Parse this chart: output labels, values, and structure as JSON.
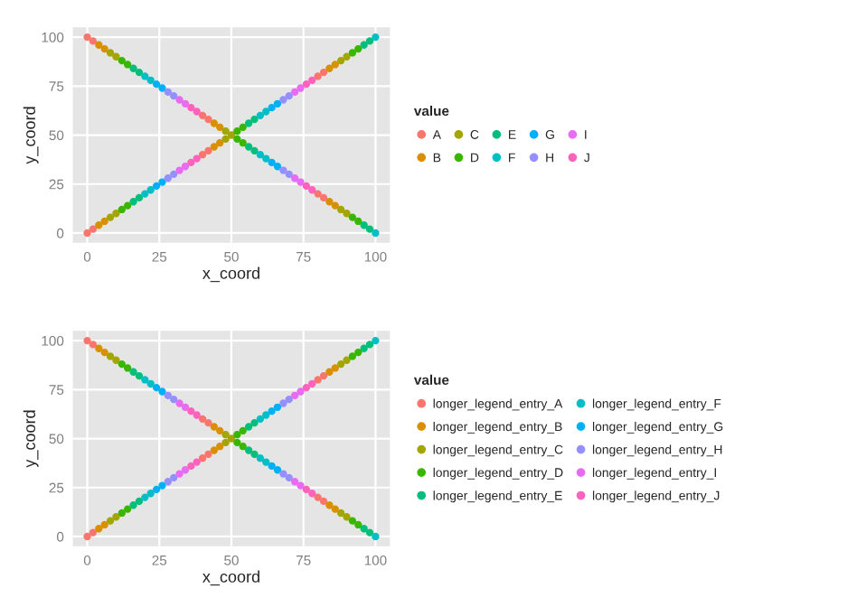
{
  "chart_data": [
    {
      "type": "scatter",
      "xlabel": "x_coord",
      "ylabel": "y_coord",
      "legend_title": "value",
      "legend": "right",
      "grid": true,
      "marker": "circle",
      "xlim": [
        -5,
        105
      ],
      "ylim": [
        -5,
        105
      ],
      "xticks": [
        0,
        25,
        50,
        75,
        100
      ],
      "yticks": [
        0,
        25,
        50,
        75,
        100
      ],
      "series": [
        {
          "name": "A",
          "color": "#f8766d",
          "x": [
            0,
            2,
            40,
            42,
            80,
            82,
            0,
            2,
            40,
            42,
            80,
            82
          ],
          "values": [
            0,
            2,
            40,
            42,
            80,
            82,
            100,
            98,
            60,
            58,
            20,
            18
          ]
        },
        {
          "name": "B",
          "color": "#d89000",
          "x": [
            4,
            6,
            44,
            46,
            84,
            86,
            4,
            6,
            44,
            46,
            84,
            86
          ],
          "values": [
            4,
            6,
            44,
            46,
            84,
            86,
            96,
            94,
            56,
            54,
            16,
            14
          ]
        },
        {
          "name": "C",
          "color": "#a3a500",
          "x": [
            8,
            10,
            48,
            50,
            88,
            90,
            8,
            10,
            48,
            88,
            90
          ],
          "values": [
            8,
            10,
            48,
            50,
            88,
            90,
            92,
            90,
            52,
            12,
            10
          ]
        },
        {
          "name": "D",
          "color": "#39b600",
          "x": [
            12,
            14,
            52,
            54,
            92,
            94,
            12,
            14,
            52,
            54,
            92,
            94
          ],
          "values": [
            12,
            14,
            52,
            54,
            92,
            94,
            88,
            86,
            48,
            46,
            8,
            6
          ]
        },
        {
          "name": "E",
          "color": "#00bf7d",
          "x": [
            16,
            18,
            56,
            58,
            96,
            98,
            16,
            18,
            56,
            58,
            96,
            98
          ],
          "values": [
            16,
            18,
            56,
            58,
            96,
            98,
            84,
            82,
            44,
            42,
            4,
            2
          ]
        },
        {
          "name": "F",
          "color": "#00bfc4",
          "x": [
            20,
            22,
            60,
            62,
            100,
            20,
            22,
            60,
            62,
            100
          ],
          "values": [
            20,
            22,
            60,
            62,
            100,
            80,
            78,
            40,
            38,
            0
          ]
        },
        {
          "name": "G",
          "color": "#00b0f6",
          "x": [
            24,
            26,
            64,
            66,
            24,
            26,
            64,
            66
          ],
          "values": [
            24,
            26,
            64,
            66,
            76,
            74,
            36,
            34
          ]
        },
        {
          "name": "H",
          "color": "#9590ff",
          "x": [
            28,
            30,
            68,
            70,
            28,
            30,
            68,
            70
          ],
          "values": [
            28,
            30,
            68,
            70,
            72,
            70,
            32,
            30
          ]
        },
        {
          "name": "I",
          "color": "#e76bf3",
          "x": [
            32,
            34,
            72,
            74,
            32,
            34,
            72,
            74
          ],
          "values": [
            32,
            34,
            72,
            74,
            68,
            66,
            28,
            26
          ]
        },
        {
          "name": "J",
          "color": "#ff62bc",
          "x": [
            36,
            38,
            76,
            78,
            36,
            38,
            76,
            78
          ],
          "values": [
            36,
            38,
            76,
            78,
            64,
            62,
            24,
            22
          ]
        }
      ]
    },
    {
      "type": "scatter",
      "xlabel": "x_coord",
      "ylabel": "y_coord",
      "legend_title": "value",
      "legend": "right",
      "grid": true,
      "marker": "circle",
      "xlim": [
        -5,
        105
      ],
      "ylim": [
        -5,
        105
      ],
      "xticks": [
        0,
        25,
        50,
        75,
        100
      ],
      "yticks": [
        0,
        25,
        50,
        75,
        100
      ],
      "series": [
        {
          "name": "longer_legend_entry_A",
          "color": "#f8766d",
          "x": [
            0,
            2,
            40,
            42,
            80,
            82,
            0,
            2,
            40,
            42,
            80,
            82
          ],
          "values": [
            0,
            2,
            40,
            42,
            80,
            82,
            100,
            98,
            60,
            58,
            20,
            18
          ]
        },
        {
          "name": "longer_legend_entry_B",
          "color": "#d89000",
          "x": [
            4,
            6,
            44,
            46,
            84,
            86,
            4,
            6,
            44,
            46,
            84,
            86
          ],
          "values": [
            4,
            6,
            44,
            46,
            84,
            86,
            96,
            94,
            56,
            54,
            16,
            14
          ]
        },
        {
          "name": "longer_legend_entry_C",
          "color": "#a3a500",
          "x": [
            8,
            10,
            48,
            50,
            88,
            90,
            8,
            10,
            48,
            88,
            90
          ],
          "values": [
            8,
            10,
            48,
            50,
            88,
            90,
            92,
            90,
            52,
            12,
            10
          ]
        },
        {
          "name": "longer_legend_entry_D",
          "color": "#39b600",
          "x": [
            12,
            14,
            52,
            54,
            92,
            94,
            12,
            14,
            52,
            54,
            92,
            94
          ],
          "values": [
            12,
            14,
            52,
            54,
            92,
            94,
            88,
            86,
            48,
            46,
            8,
            6
          ]
        },
        {
          "name": "longer_legend_entry_E",
          "color": "#00bf7d",
          "x": [
            16,
            18,
            56,
            58,
            96,
            98,
            16,
            18,
            56,
            58,
            96,
            98
          ],
          "values": [
            16,
            18,
            56,
            58,
            96,
            98,
            84,
            82,
            44,
            42,
            4,
            2
          ]
        },
        {
          "name": "longer_legend_entry_F",
          "color": "#00bfc4",
          "x": [
            20,
            22,
            60,
            62,
            100,
            20,
            22,
            60,
            62,
            100
          ],
          "values": [
            20,
            22,
            60,
            62,
            100,
            80,
            78,
            40,
            38,
            0
          ]
        },
        {
          "name": "longer_legend_entry_G",
          "color": "#00b0f6",
          "x": [
            24,
            26,
            64,
            66,
            24,
            26,
            64,
            66
          ],
          "values": [
            24,
            26,
            64,
            66,
            76,
            74,
            36,
            34
          ]
        },
        {
          "name": "longer_legend_entry_H",
          "color": "#9590ff",
          "x": [
            28,
            30,
            68,
            70,
            28,
            30,
            68,
            70
          ],
          "values": [
            28,
            30,
            68,
            70,
            72,
            70,
            32,
            30
          ]
        },
        {
          "name": "longer_legend_entry_I",
          "color": "#e76bf3",
          "x": [
            32,
            34,
            72,
            74,
            32,
            34,
            72,
            74
          ],
          "values": [
            32,
            34,
            72,
            74,
            68,
            66,
            28,
            26
          ]
        },
        {
          "name": "longer_legend_entry_J",
          "color": "#ff62bc",
          "x": [
            36,
            38,
            76,
            78,
            36,
            38,
            76,
            78
          ],
          "values": [
            36,
            38,
            76,
            78,
            64,
            62,
            24,
            22
          ]
        }
      ]
    }
  ]
}
